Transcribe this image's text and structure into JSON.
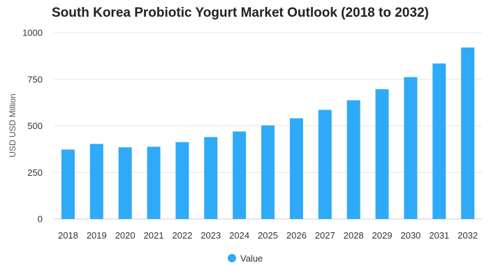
{
  "chart_data": {
    "type": "bar",
    "title": "South Korea Probiotic Yogurt Market Outlook (2018 to 2032)",
    "xlabel": "",
    "ylabel": "USD USD Million",
    "ylim": [
      0,
      1000
    ],
    "yticks": [
      0,
      250,
      500,
      750,
      1000
    ],
    "grid": true,
    "legend_position": "bottom",
    "categories": [
      "2018",
      "2019",
      "2020",
      "2021",
      "2022",
      "2023",
      "2024",
      "2025",
      "2026",
      "2027",
      "2028",
      "2029",
      "2030",
      "2031",
      "2032"
    ],
    "series": [
      {
        "name": "Value",
        "color": "#2eaaf8",
        "values": [
          373,
          403,
          385,
          388,
          413,
          440,
          470,
          503,
          541,
          586,
          638,
          697,
          762,
          835,
          921
        ]
      }
    ]
  }
}
